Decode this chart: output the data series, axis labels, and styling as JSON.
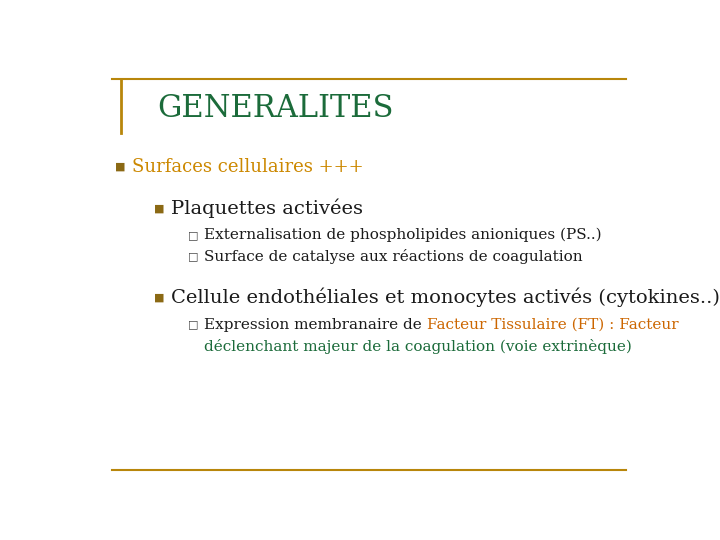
{
  "title": "GENERALITES",
  "title_color": "#1B6B3A",
  "title_fontsize": 22,
  "border_color": "#B8860B",
  "bg_color": "#FFFFFF",
  "bullet1_text": "Surfaces cellulaires +++",
  "bullet1_color": "#CC8800",
  "bullet1_fontsize": 13,
  "bullet1_marker_color": "#8B6914",
  "sub_bullet1_text": "Plaquettes activées",
  "sub_bullet1_color": "#1A1A1A",
  "sub_bullet1_fontsize": 14,
  "sub_bullet1_marker_color": "#8B6914",
  "q1_text": "Externalisation de phospholipides anioniques (PS..)",
  "q1_color": "#1A1A1A",
  "q1_fontsize": 11,
  "q2_text": "Surface de catalyse aux réactions de coagulation",
  "q2_color": "#1A1A1A",
  "q2_fontsize": 11,
  "sub_bullet2_text": "Cellule endothéliales et monocytes activés (cytokines..)",
  "sub_bullet2_color": "#1A1A1A",
  "sub_bullet2_fontsize": 14,
  "sub_bullet2_marker_color": "#8B6914",
  "q3_prefix": "Expression membranaire de ",
  "q3_orange": "Facteur Tissulaire (FT) : Facteur",
  "q3_green_line2": "déclenchant majeur de la coagulation (voie extrinèque)",
  "q3_text_color": "#1A1A1A",
  "q3_orange_color": "#CC6600",
  "q3_green_color": "#1B6B3A",
  "q3_fontsize": 11,
  "square_marker_color": "#444444"
}
